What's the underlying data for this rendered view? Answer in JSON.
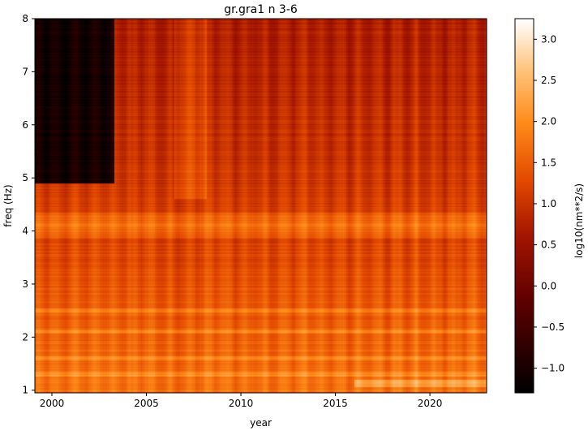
{
  "chart_data": {
    "type": "heatmap",
    "title": "gr.gra1 n 3-6",
    "xlabel": "year",
    "ylabel": "freq (Hz)",
    "xlim": [
      1999.1,
      2023.0
    ],
    "ylim": [
      0.95,
      8.0
    ],
    "x_ticks": [
      2000,
      2005,
      2010,
      2015,
      2020
    ],
    "y_ticks": [
      1,
      2,
      3,
      4,
      5,
      6,
      7,
      8
    ],
    "colorbar": {
      "label": "log10(nm**2/s)",
      "range": [
        -1.3,
        3.25
      ],
      "ticks": [
        -1.0,
        -0.5,
        0.0,
        0.5,
        1.0,
        1.5,
        2.0,
        2.5,
        3.0
      ],
      "tick_labels": [
        "−1.0",
        "−0.5",
        "0.0",
        "0.5",
        "1.0",
        "1.5",
        "2.0",
        "2.5",
        "3.0"
      ],
      "colormap": "gist_heat"
    },
    "features": [
      {
        "description": "very low values (black) at high frequencies early on",
        "x_range": [
          1999.1,
          2003.3
        ],
        "y_range": [
          4.9,
          8.0
        ],
        "value": -1.0
      },
      {
        "description": "persistent bright band",
        "x_range": [
          1999.1,
          2023.0
        ],
        "y_range": [
          3.85,
          4.35
        ],
        "value": 1.9
      },
      {
        "description": "bright band at low frequency",
        "x_range": [
          2016.0,
          2023.0
        ],
        "y_range": [
          1.05,
          1.2
        ],
        "value": 2.3
      },
      {
        "description": "horizontal bands",
        "freqs": [
          1.3,
          1.6,
          2.1,
          2.5
        ],
        "value": 1.8
      },
      {
        "description": "mid-frequency level",
        "value": 1.3
      },
      {
        "description": "high-frequency level",
        "value": 0.8
      }
    ]
  }
}
